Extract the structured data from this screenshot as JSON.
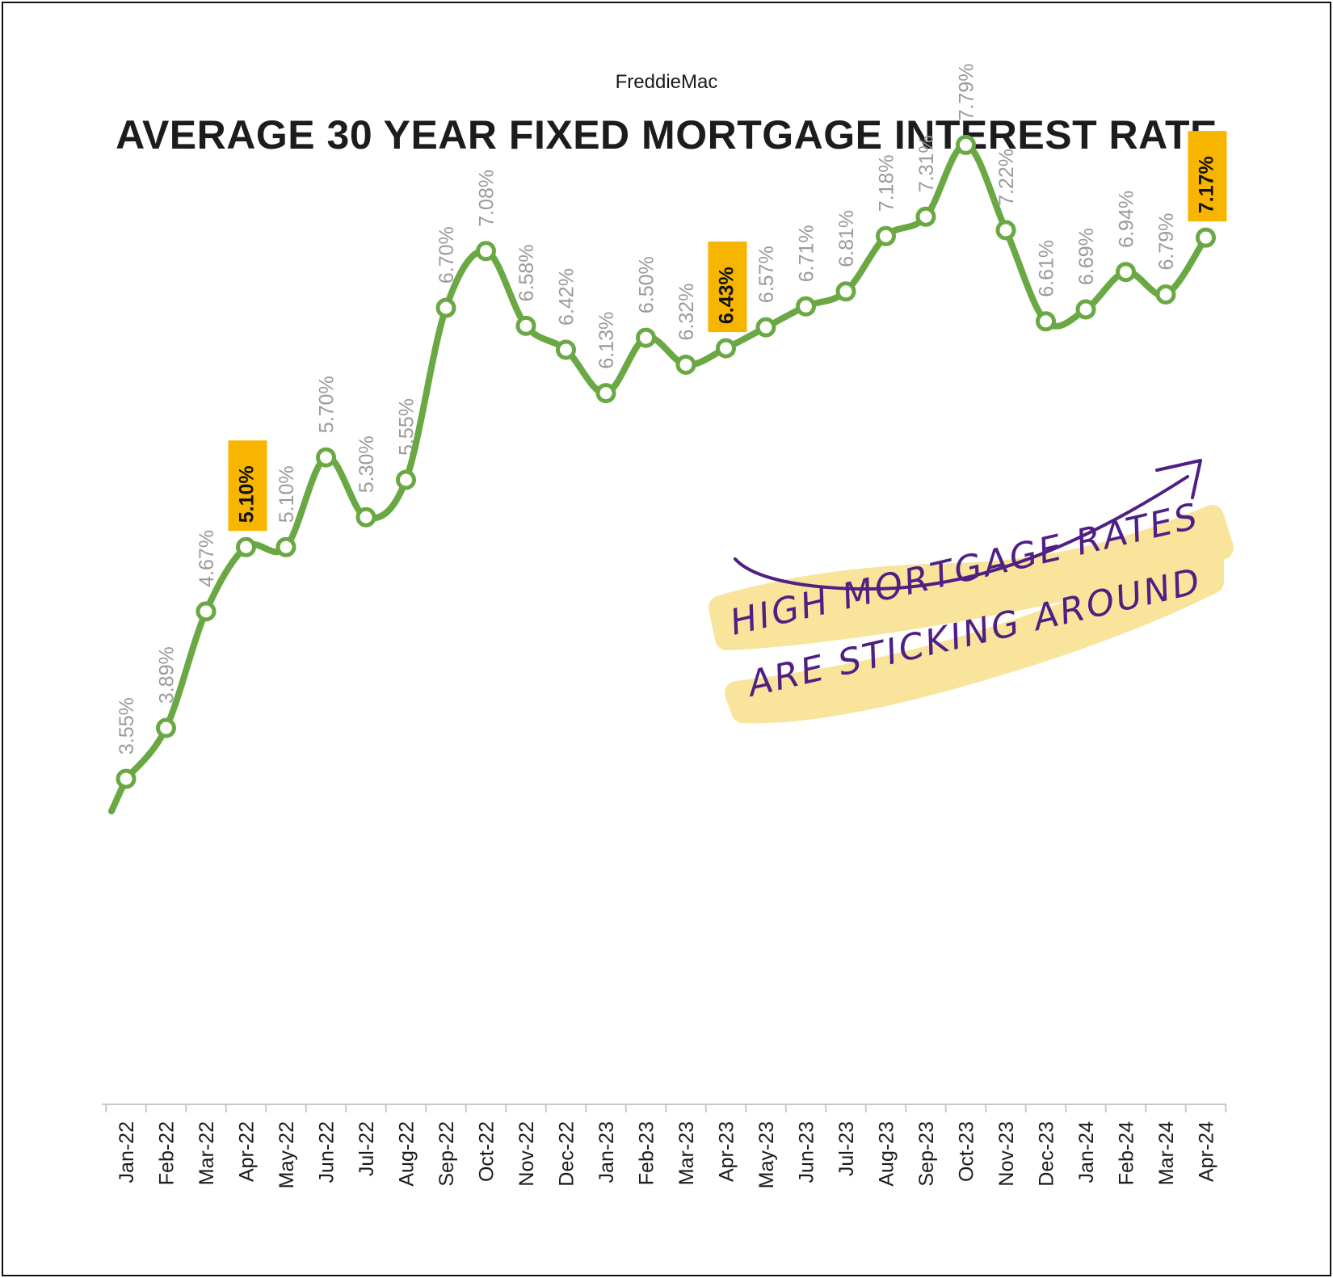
{
  "chart_data": {
    "type": "line",
    "source": "FreddieMac",
    "title": "AVERAGE 30 YEAR FIXED MORTGAGE INTEREST RATE",
    "categories": [
      "Jan-22",
      "Feb-22",
      "Mar-22",
      "Apr-22",
      "May-22",
      "Jun-22",
      "Jul-22",
      "Aug-22",
      "Sep-22",
      "Oct-22",
      "Nov-22",
      "Dec-22",
      "Jan-23",
      "Feb-23",
      "Mar-23",
      "Apr-23",
      "May-23",
      "Jun-23",
      "Jul-23",
      "Aug-23",
      "Sep-23",
      "Oct-23",
      "Nov-23",
      "Dec-23",
      "Jan-24",
      "Feb-24",
      "Mar-24",
      "Apr-24"
    ],
    "series": [
      {
        "values": [
          3.55,
          3.89,
          4.67,
          5.1,
          5.1,
          5.7,
          5.3,
          5.55,
          6.7,
          7.08,
          6.58,
          6.42,
          6.13,
          6.5,
          6.32,
          6.43,
          6.57,
          6.71,
          6.81,
          7.18,
          7.31,
          7.79,
          7.22,
          6.61,
          6.69,
          6.94,
          6.79,
          7.17
        ],
        "labels": [
          "3.55%",
          "3.89%",
          "4.67%",
          "5.10%",
          "5.10%",
          "5.70%",
          "5.30%",
          "5.55%",
          "6.70%",
          "7.08%",
          "6.58%",
          "6.42%",
          "6.13%",
          "6.50%",
          "6.32%",
          "6.43%",
          "6.57%",
          "6.71%",
          "6.81%",
          "7.18%",
          "7.31%",
          "7.79%",
          "7.22%",
          "6.61%",
          "6.69%",
          "6.94%",
          "6.79%",
          "7.17%"
        ]
      }
    ],
    "highlighted": [
      "Apr-22",
      "Apr-23",
      "Apr-24"
    ],
    "ylim": [
      1.4,
      8.5
    ],
    "grid": false,
    "legend": "none",
    "colors": {
      "line": "#6aa843",
      "highlight": "#f7b500",
      "annotation": "#4f1f84",
      "annotation_bg": "#f8e49a"
    }
  },
  "annotation": {
    "line1": "HIGH MORTGAGE RATES",
    "line2": "ARE STICKING AROUND"
  }
}
